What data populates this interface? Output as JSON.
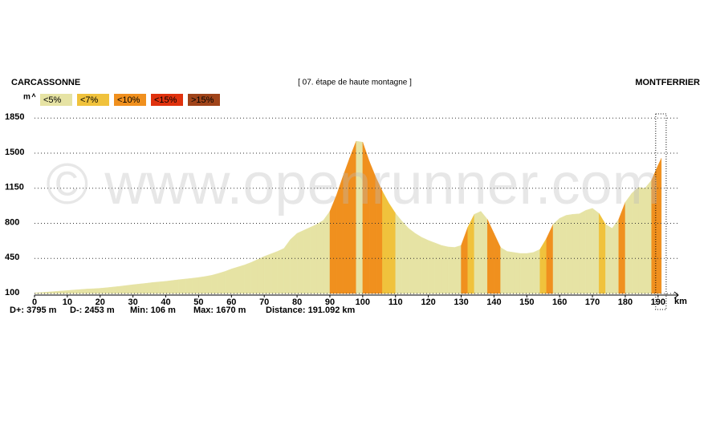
{
  "chart_data": {
    "type": "area",
    "title": "[ 07. étape de haute montagne ]",
    "start": "CARCASSONNE",
    "finish": "MONTFERRIER",
    "y_label": "m",
    "x_label": "km",
    "watermark": "© www.openrunner.com",
    "stats": [
      "D+: 3795 m",
      "D-: 2453 m",
      "Min: 106 m",
      "Max: 1670 m",
      "Distance: 191.092 km"
    ],
    "grade_classes": [
      {
        "value": 5,
        "label": "<5%",
        "color": "#e6e3a4"
      },
      {
        "value": 7,
        "label": "<7%",
        "color": "#f0c23c"
      },
      {
        "value": 10,
        "label": "<10%",
        "color": "#f0901e"
      },
      {
        "value": 15,
        "label": "<15%",
        "color": "#e0320e"
      },
      {
        "value": 15,
        "label": ">15%",
        "color": "#a0441a"
      }
    ],
    "x": [
      0,
      2,
      4,
      6,
      8,
      10,
      12,
      14,
      16,
      18,
      20,
      22,
      24,
      26,
      28,
      30,
      32,
      34,
      36,
      38,
      40,
      42,
      44,
      46,
      48,
      50,
      52,
      54,
      56,
      58,
      60,
      62,
      64,
      66,
      68,
      70,
      72,
      74,
      76,
      78,
      80,
      82,
      84,
      86,
      88,
      90,
      92,
      94,
      96,
      98,
      100,
      102,
      104,
      106,
      108,
      110,
      112,
      114,
      116,
      118,
      120,
      122,
      124,
      126,
      128,
      130,
      132,
      134,
      136,
      138,
      140,
      142,
      144,
      146,
      148,
      150,
      152,
      154,
      156,
      158,
      160,
      162,
      164,
      166,
      168,
      170,
      172,
      174,
      176,
      178,
      180,
      182,
      184,
      186,
      188,
      190,
      191
    ],
    "values": [
      106,
      110,
      115,
      120,
      125,
      130,
      135,
      140,
      145,
      148,
      152,
      158,
      165,
      172,
      180,
      188,
      195,
      202,
      210,
      216,
      222,
      230,
      238,
      245,
      252,
      260,
      270,
      282,
      300,
      320,
      345,
      365,
      385,
      410,
      440,
      470,
      495,
      520,
      550,
      640,
      700,
      730,
      760,
      790,
      830,
      920,
      1080,
      1270,
      1450,
      1620,
      1610,
      1420,
      1260,
      1120,
      1000,
      900,
      820,
      750,
      700,
      660,
      630,
      605,
      580,
      565,
      560,
      580,
      760,
      890,
      920,
      840,
      700,
      560,
      520,
      510,
      500,
      500,
      510,
      540,
      650,
      790,
      850,
      880,
      890,
      895,
      930,
      950,
      900,
      790,
      750,
      840,
      1010,
      1100,
      1160,
      1150,
      1230,
      1380,
      1450
    ],
    "xlim": [
      0,
      192
    ],
    "ylim": [
      100,
      1900
    ],
    "xticks": [
      0,
      10,
      20,
      30,
      40,
      50,
      60,
      70,
      80,
      90,
      100,
      110,
      120,
      130,
      140,
      150,
      160,
      170,
      180,
      190
    ],
    "yticks": [
      100,
      450,
      800,
      1150,
      1500,
      1850
    ],
    "grid": true
  }
}
